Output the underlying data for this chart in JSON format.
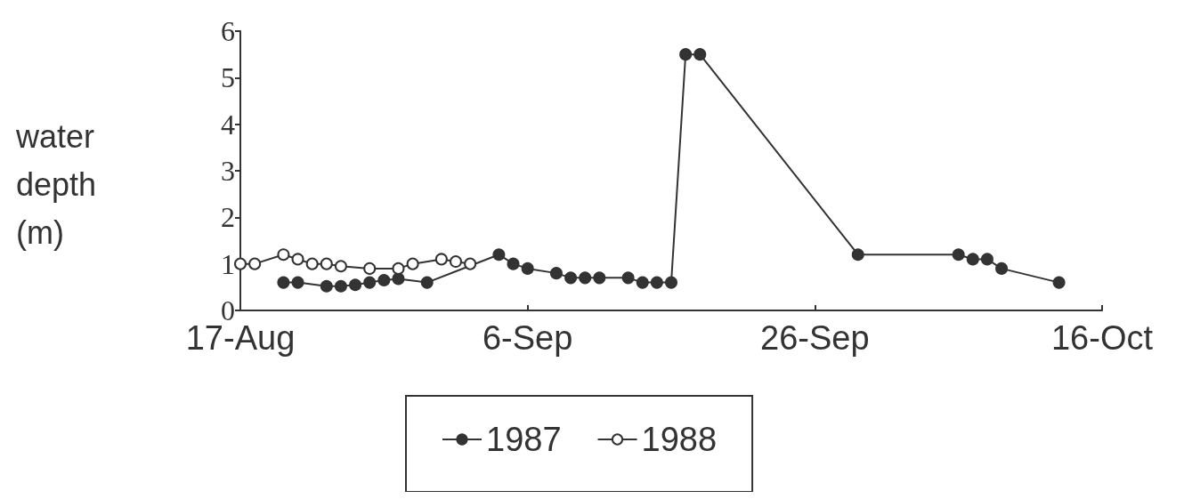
{
  "chart_data": {
    "type": "line",
    "ylabel": "water depth (m)",
    "xlim": [
      "--08-17",
      "--10-16"
    ],
    "xticks": [
      {
        "value": "--08-17",
        "label": "17-Aug"
      },
      {
        "value": "--09-06",
        "label": "6-Sep"
      },
      {
        "value": "--09-26",
        "label": "26-Sep"
      },
      {
        "value": "--10-16",
        "label": "16-Oct"
      }
    ],
    "ylim": [
      0,
      6
    ],
    "yticks": [
      0,
      1,
      2,
      3,
      4,
      5,
      6
    ],
    "grid": false,
    "legend": "bottom",
    "marker": "circle",
    "line_style": "solid",
    "series": [
      {
        "name": "1987",
        "color": "#333333",
        "x": [
          "--08-20",
          "--08-21",
          "--08-23",
          "--08-24",
          "--08-25",
          "--08-26",
          "--08-27",
          "--08-28",
          "--08-30",
          "--09-04",
          "--09-05",
          "--09-06",
          "--09-08",
          "--09-09",
          "--09-10",
          "--09-11",
          "--09-13",
          "--09-14",
          "--09-15",
          "--09-16",
          "--09-17",
          "--09-18",
          "--09-29",
          "--10-06",
          "--10-07",
          "--10-08",
          "--10-09",
          "--10-13"
        ],
        "values": [
          0.6,
          0.6,
          0.52,
          0.52,
          0.55,
          0.6,
          0.65,
          0.68,
          0.6,
          1.2,
          1.0,
          0.9,
          0.8,
          0.7,
          0.7,
          0.7,
          0.7,
          0.6,
          0.6,
          0.6,
          5.5,
          5.5,
          1.2,
          1.2,
          1.1,
          1.1,
          0.9,
          0.6
        ]
      },
      {
        "name": "1988",
        "color": "#333333",
        "x": [
          "--08-17",
          "--08-18",
          "--08-20",
          "--08-21",
          "--08-22",
          "--08-23",
          "--08-24",
          "--08-26",
          "--08-28",
          "--08-29",
          "--08-31",
          "--09-01",
          "--09-02"
        ],
        "values": [
          1.0,
          1.0,
          1.2,
          1.1,
          1.0,
          1.0,
          0.95,
          0.9,
          0.9,
          1.0,
          1.1,
          1.05,
          1.0
        ]
      }
    ]
  }
}
